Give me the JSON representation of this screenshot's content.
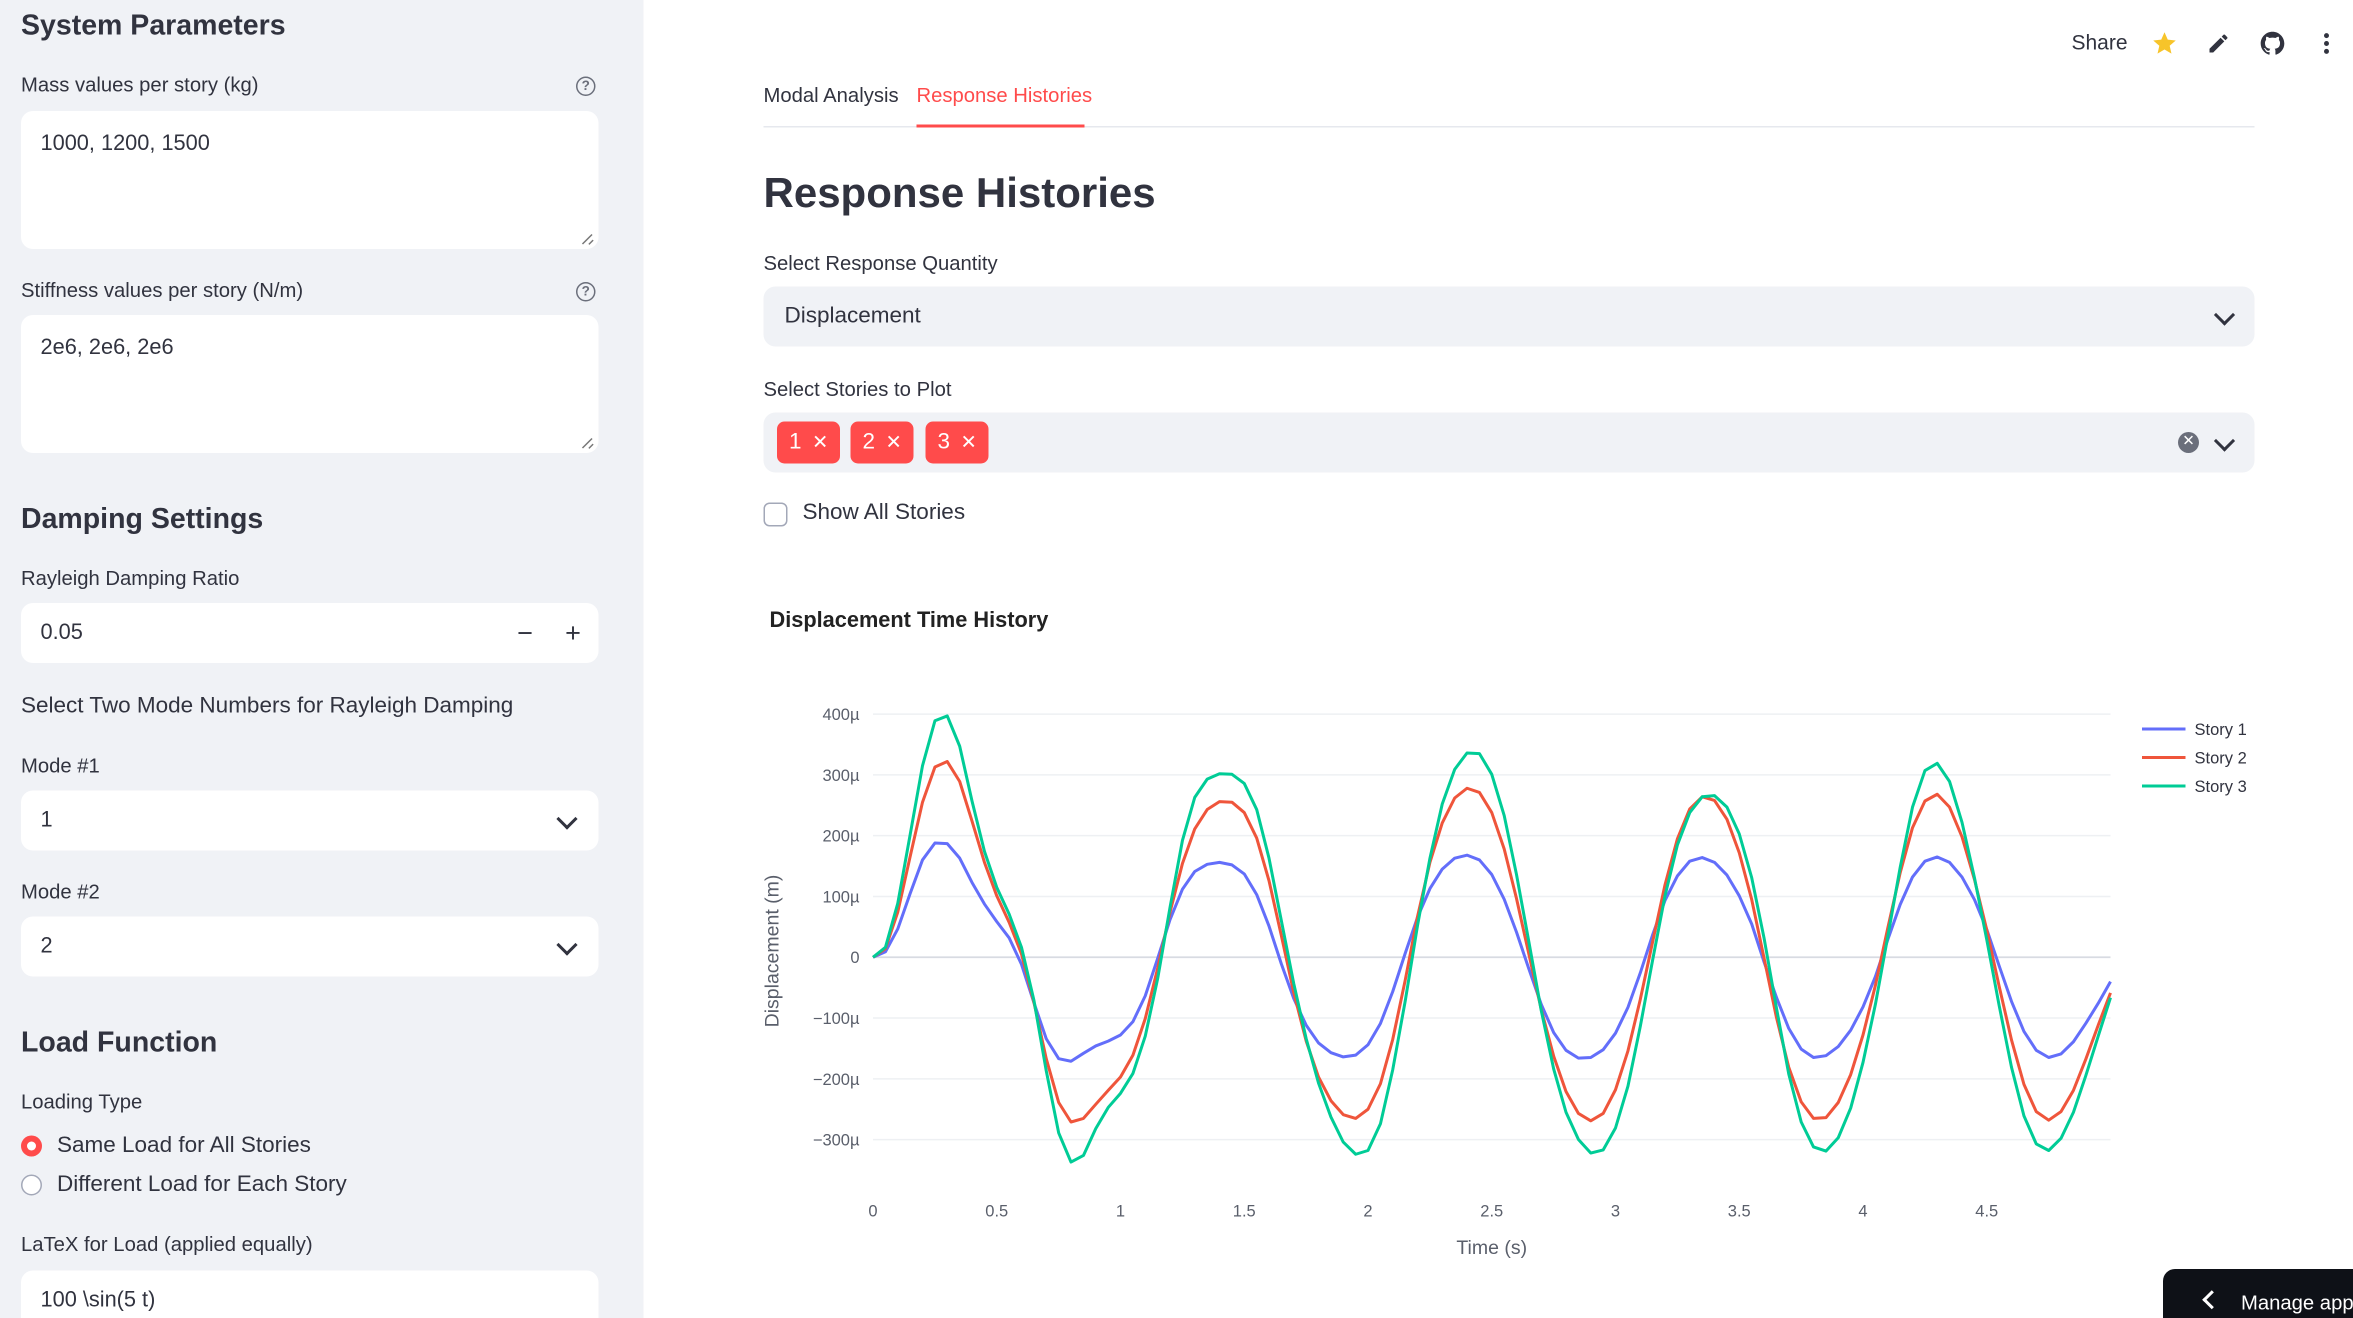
{
  "sidebar": {
    "system_title": "System Parameters",
    "mass_label": "Mass values per story (kg)",
    "mass_value": "1000, 1200, 1500",
    "stiffness_label": "Stiffness values per story (N/m)",
    "stiffness_value": "2e6, 2e6, 2e6",
    "damping_title": "Damping Settings",
    "rayleigh_label": "Rayleigh Damping Ratio",
    "rayleigh_value": "0.05",
    "step_minus": "−",
    "step_plus": "+",
    "mode_heading": "Select Two Mode Numbers for Rayleigh Damping",
    "mode1_label": "Mode #1",
    "mode1_value": "1",
    "mode2_label": "Mode #2",
    "mode2_value": "2",
    "load_title": "Load Function",
    "loading_type_label": "Loading Type",
    "loading_options": [
      "Same Load for All Stories",
      "Different Load for Each Story"
    ],
    "loading_selected": 0,
    "latex_label": "LaTeX for Load (applied equally)",
    "latex_value": "100 \\sin(5 t)",
    "help_glyph": "?"
  },
  "header": {
    "share_label": "Share",
    "icons": [
      "star-icon",
      "edit-pencil-icon",
      "github-icon",
      "more-menu-icon"
    ]
  },
  "main": {
    "tabs": [
      {
        "label": "Modal Analysis",
        "active": false
      },
      {
        "label": "Response Histories",
        "active": true
      }
    ],
    "title": "Response Histories",
    "quantity_label": "Select Response Quantity",
    "quantity_value": "Displacement",
    "stories_label": "Select Stories to Plot",
    "stories_selected": [
      "1",
      "2",
      "3"
    ],
    "show_all_label": "Show All Stories",
    "show_all_checked": false
  },
  "colors": {
    "accent": "#ff4b4b",
    "story1": "#636efa",
    "story2": "#ef553b",
    "story3": "#00cc96"
  },
  "chart_data": {
    "type": "line",
    "title": "Displacement Time History",
    "xlabel": "Time (s)",
    "ylabel": "Displacement (m)",
    "xlim": [
      0,
      5
    ],
    "ylim": [
      -0.00035,
      0.00041
    ],
    "x_ticks": [
      "0",
      "0.5",
      "1",
      "1.5",
      "2",
      "2.5",
      "3",
      "3.5",
      "4",
      "4.5"
    ],
    "y_ticks": [
      "400µ",
      "300µ",
      "200µ",
      "100µ",
      "0",
      "−100µ",
      "−200µ",
      "−300µ"
    ],
    "grid": true,
    "legend_position": "top-right",
    "series": [
      {
        "name": "Story 1",
        "color": "#636efa",
        "x": [
          0,
          0.05,
          0.1,
          0.15,
          0.2,
          0.25,
          0.3,
          0.35,
          0.4,
          0.45,
          0.5,
          0.55,
          0.6,
          0.65,
          0.7,
          0.75,
          0.8,
          0.85,
          0.9,
          0.95,
          1.0,
          1.05,
          1.1,
          1.15,
          1.2,
          1.25,
          1.3,
          1.35,
          1.4,
          1.45,
          1.5,
          1.55,
          1.6,
          1.65,
          1.7,
          1.75,
          1.8,
          1.85,
          1.9,
          1.95,
          2.0,
          2.05,
          2.1,
          2.15,
          2.2,
          2.25,
          2.3,
          2.35,
          2.4,
          2.45,
          2.5,
          2.55,
          2.6,
          2.65,
          2.7,
          2.75,
          2.8,
          2.85,
          2.9,
          2.95,
          3.0,
          3.05,
          3.1,
          3.15,
          3.2,
          3.25,
          3.3,
          3.35,
          3.4,
          3.45,
          3.5,
          3.55,
          3.6,
          3.65,
          3.7,
          3.75,
          3.8,
          3.85,
          3.9,
          3.95,
          4.0,
          4.05,
          4.1,
          4.15,
          4.2,
          4.25,
          4.3,
          4.35,
          4.4,
          4.45,
          4.5,
          4.55,
          4.6,
          4.65,
          4.7,
          4.75,
          4.8,
          4.85,
          4.9,
          4.95,
          5.0
        ],
        "y": [
          0.0,
          8.95e-06,
          4.66e-05,
          0.000105,
          0.00016,
          0.000188,
          0.000187,
          0.000163,
          0.000123,
          8.76e-05,
          5.86e-05,
          3.18e-05,
          -1.16e-05,
          -7.49e-05,
          -0.000134,
          -0.000167,
          -0.000171,
          -0.000158,
          -0.000146,
          -0.000138,
          -0.000128,
          -0.000106,
          -6.34e-05,
          -1.89e-06,
          6.19e-05,
          0.000112,
          0.000141,
          0.000153,
          0.000156,
          0.000152,
          0.000137,
          0.000103,
          5.13e-05,
          -1.07e-05,
          -6.79e-05,
          -0.000112,
          -0.000141,
          -0.000157,
          -0.000164,
          -0.000161,
          -0.000144,
          -0.000109,
          -5.64e-05,
          6.29e-06,
          6.56e-05,
          0.000113,
          0.000145,
          0.000163,
          0.000168,
          0.00016,
          0.000136,
          9.53e-05,
          4.14e-05,
          -1.97e-05,
          -7.77e-05,
          -0.000124,
          -0.000153,
          -0.000166,
          -0.000165,
          -0.000152,
          -0.000125,
          -8.24e-05,
          -2.6e-05,
          3.71e-05,
          9.33e-05,
          0.000134,
          0.000158,
          0.000164,
          0.000156,
          0.000135,
          0.000101,
          5.46e-05,
          -7.51e-06,
          -6.61e-05,
          -0.000117,
          -0.000151,
          -0.000165,
          -0.000162,
          -0.000147,
          -0.00012,
          -8.17e-05,
          -3.17e-05,
          2.88e-05,
          8.68e-05,
          0.000132,
          0.000158,
          0.000165,
          0.000156,
          0.000132,
          9.48e-05,
          4.57e-05,
          -1.36e-05,
          -7.27e-05,
          -0.000122,
          -0.000153,
          -0.000165,
          -0.000159,
          -0.000139,
          -0.000109,
          -7.58e-05,
          -4e-05
        ]
      },
      {
        "name": "Story 2",
        "color": "#ef553b",
        "x": [
          0,
          0.05,
          0.1,
          0.15,
          0.2,
          0.25,
          0.3,
          0.35,
          0.4,
          0.45,
          0.5,
          0.55,
          0.6,
          0.65,
          0.7,
          0.75,
          0.8,
          0.85,
          0.9,
          0.95,
          1.0,
          1.05,
          1.1,
          1.15,
          1.2,
          1.25,
          1.3,
          1.35,
          1.4,
          1.45,
          1.5,
          1.55,
          1.6,
          1.65,
          1.7,
          1.75,
          1.8,
          1.85,
          1.9,
          1.95,
          2.0,
          2.05,
          2.1,
          2.15,
          2.2,
          2.25,
          2.3,
          2.35,
          2.4,
          2.45,
          2.5,
          2.55,
          2.6,
          2.65,
          2.7,
          2.75,
          2.8,
          2.85,
          2.9,
          2.95,
          3.0,
          3.05,
          3.1,
          3.15,
          3.2,
          3.25,
          3.3,
          3.35,
          3.4,
          3.45,
          3.5,
          3.55,
          3.6,
          3.65,
          3.7,
          3.75,
          3.8,
          3.85,
          3.9,
          3.95,
          4.0,
          4.05,
          4.1,
          4.15,
          4.2,
          4.25,
          4.3,
          4.35,
          4.4,
          4.45,
          4.5,
          4.55,
          4.6,
          4.65,
          4.7,
          4.75,
          4.8,
          4.85,
          4.9,
          4.95,
          5.0
        ],
        "y": [
          0.0,
          1.41e-05,
          7.41e-05,
          0.000166,
          0.000255,
          0.000313,
          0.000322,
          0.000289,
          0.000224,
          0.000156,
          0.000101,
          5.72e-05,
          5.36e-06,
          -7.43e-05,
          -0.000167,
          -0.000239,
          -0.000271,
          -0.000265,
          -0.000242,
          -0.000219,
          -0.000197,
          -0.000161,
          -0.000101,
          -1.79e-05,
          7.38e-05,
          0.000154,
          0.000211,
          0.000243,
          0.000256,
          0.000255,
          0.000238,
          0.000196,
          0.000126,
          3.58e-05,
          -5.82e-05,
          -0.000138,
          -0.000197,
          -0.000236,
          -0.000259,
          -0.000265,
          -0.00025,
          -0.000208,
          -0.000135,
          -3.79e-05,
          6.68e-05,
          0.000156,
          0.000221,
          0.000262,
          0.000278,
          0.000271,
          0.000238,
          0.000178,
          9.66e-05,
          4.69e-06,
          -8.6e-05,
          -0.000163,
          -0.000221,
          -0.000257,
          -0.000269,
          -0.000257,
          -0.000218,
          -0.000154,
          -6.98e-05,
          2.59e-05,
          0.000119,
          0.000195,
          0.000244,
          0.000264,
          0.000258,
          0.000227,
          0.000172,
          9.49e-05,
          -9.06e-07,
          -9.91e-05,
          -0.000181,
          -0.000238,
          -0.000265,
          -0.000264,
          -0.000239,
          -0.000193,
          -0.000128,
          -4.59e-05,
          4.77e-05,
          0.000139,
          0.000213,
          0.000257,
          0.000268,
          0.000247,
          0.000198,
          0.000128,
          4.5e-05,
          -4.7e-05,
          -0.000136,
          -0.000209,
          -0.000254,
          -0.000268,
          -0.000254,
          -0.000219,
          -0.000168,
          -0.000112,
          -5.85e-05
        ]
      },
      {
        "name": "Story 3",
        "color": "#00cc96",
        "x": [
          0,
          0.05,
          0.1,
          0.15,
          0.2,
          0.25,
          0.3,
          0.35,
          0.4,
          0.45,
          0.5,
          0.55,
          0.6,
          0.65,
          0.7,
          0.75,
          0.8,
          0.85,
          0.9,
          0.95,
          1.0,
          1.05,
          1.1,
          1.15,
          1.2,
          1.25,
          1.3,
          1.35,
          1.4,
          1.45,
          1.5,
          1.55,
          1.6,
          1.65,
          1.7,
          1.75,
          1.8,
          1.85,
          1.9,
          1.95,
          2.0,
          2.05,
          2.1,
          2.15,
          2.2,
          2.25,
          2.3,
          2.35,
          2.4,
          2.45,
          2.5,
          2.55,
          2.6,
          2.65,
          2.7,
          2.75,
          2.8,
          2.85,
          2.9,
          2.95,
          3.0,
          3.05,
          3.1,
          3.15,
          3.2,
          3.25,
          3.3,
          3.35,
          3.4,
          3.45,
          3.5,
          3.55,
          3.6,
          3.65,
          3.7,
          3.75,
          3.8,
          3.85,
          3.9,
          3.95,
          4.0,
          4.05,
          4.1,
          4.15,
          4.2,
          4.25,
          4.3,
          4.35,
          4.4,
          4.45,
          4.5,
          4.55,
          4.6,
          4.65,
          4.7,
          4.75,
          4.8,
          4.85,
          4.9,
          4.95,
          5.0
        ],
        "y": [
          0.0,
          1.64e-05,
          8.85e-05,
          0.000202,
          0.000315,
          0.000389,
          0.000397,
          0.000347,
          0.000257,
          0.000174,
          0.000115,
          7.06e-05,
          1.61e-05,
          -7.1e-05,
          -0.000187,
          -0.000289,
          -0.000337,
          -0.000326,
          -0.000282,
          -0.000247,
          -0.000224,
          -0.000191,
          -0.00013,
          -3.5e-05,
          8.17e-05,
          0.000192,
          0.000263,
          0.000293,
          0.000302,
          0.000301,
          0.000286,
          0.000243,
          0.000163,
          6.05e-05,
          -4.32e-05,
          -0.000134,
          -0.000207,
          -0.000263,
          -0.000304,
          -0.000324,
          -0.000318,
          -0.000274,
          -0.000185,
          -7.21e-05,
          5.2e-05,
          0.000163,
          0.000252,
          0.000309,
          0.000336,
          0.000335,
          0.000301,
          0.000233,
          0.000136,
          2.45e-05,
          -8.76e-05,
          -0.000184,
          -0.000255,
          -0.0003,
          -0.000322,
          -0.000317,
          -0.000281,
          -0.000212,
          -0.000114,
          -4.15e-06,
          0.000101,
          0.000185,
          0.000238,
          0.000264,
          0.000266,
          0.000247,
          0.000203,
          0.000131,
          3.2e-05,
          -8.34e-05,
          -0.000192,
          -0.000271,
          -0.000312,
          -0.000319,
          -0.000297,
          -0.000248,
          -0.000173,
          -7.72e-05,
          3.38e-05,
          0.000148,
          0.000247,
          0.000307,
          0.000319,
          0.000289,
          0.000222,
          0.000131,
          2.89e-05,
          -7.85e-05,
          -0.000181,
          -0.000261,
          -0.000307,
          -0.000318,
          -0.000298,
          -0.000255,
          -0.000195,
          -0.00013,
          -6.64e-05
        ]
      }
    ]
  },
  "manage_app_label": "Manage app"
}
